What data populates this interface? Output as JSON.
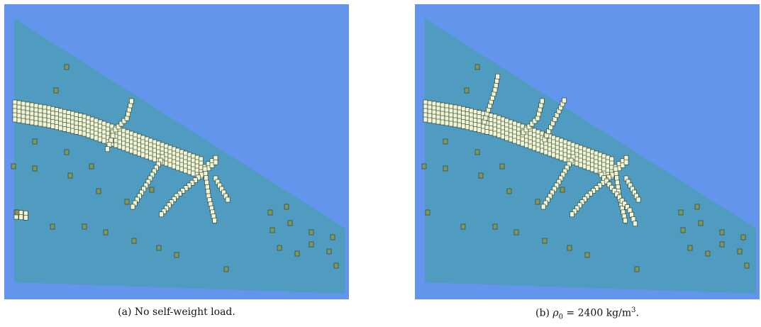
{
  "figure": {
    "panels": [
      {
        "label": "(a)",
        "caption": "No self-weight load."
      },
      {
        "label": "(b)",
        "caption_parts": [
          "ρ",
          "0",
          " = 2400 kg/m",
          "3",
          "."
        ]
      }
    ]
  }
}
